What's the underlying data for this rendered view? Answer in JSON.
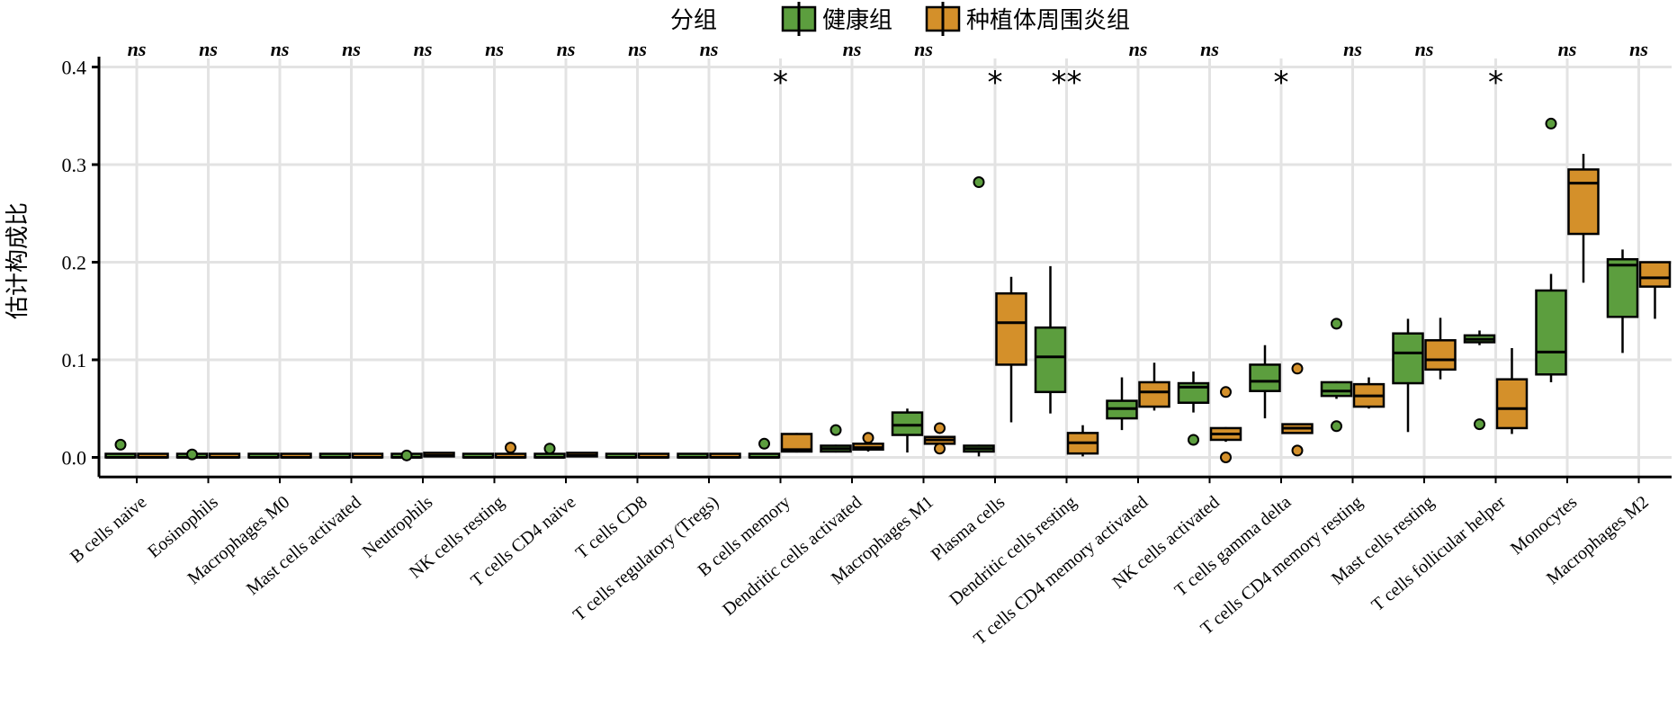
{
  "chart_data": {
    "type": "box",
    "ylabel": "估计构成比",
    "ylim": [
      -0.02,
      0.4
    ],
    "yticks": [
      "0.0",
      "0.1",
      "0.2",
      "0.3",
      "0.4"
    ],
    "ytick_values": [
      0.0,
      0.1,
      0.2,
      0.3,
      0.4
    ],
    "grid": true,
    "legend": {
      "title": "分组",
      "placement": "top-center",
      "entries": [
        "健康组",
        "种植体周围炎组"
      ]
    },
    "colors": {
      "健康组": "#5c9e3e",
      "种植体周围炎组": "#d4902a"
    },
    "categories": [
      "B cells naive",
      "Eosinophils",
      "Macrophages M0",
      "Mast cells activated",
      "Neutrophils",
      "NK cells resting",
      "T cells CD4 naive",
      "T cells CD8",
      "T cells regulatory (Tregs)",
      "B cells memory",
      "Dendritic cells activated",
      "Macrophages M1",
      "Plasma cells",
      "Dendritic cells resting",
      "T cells CD4 memory activated",
      "NK cells activated",
      "T cells gamma delta",
      "T cells CD4 memory resting",
      "Mast cells resting",
      "T cells follicular helper",
      "Monocytes",
      "Macrophages M2"
    ],
    "significance": [
      "ns",
      "ns",
      "ns",
      "ns",
      "ns",
      "ns",
      "ns",
      "ns",
      "ns",
      "*",
      "ns",
      "ns",
      "*",
      "**",
      "ns",
      "ns",
      "*",
      "ns",
      "ns",
      "*",
      "ns",
      "ns"
    ],
    "series": [
      {
        "name": "健康组",
        "boxes": [
          {
            "q1": 0,
            "median": 0,
            "q3": 0.001,
            "wmin": 0,
            "wmax": 0.001,
            "outliers": [
              0.013
            ]
          },
          {
            "q1": 0,
            "median": 0,
            "q3": 0.001,
            "wmin": 0,
            "wmax": 0.001,
            "outliers": [
              0.003
            ]
          },
          {
            "q1": 0,
            "median": 0,
            "q3": 0.001,
            "wmin": 0,
            "wmax": 0.001,
            "outliers": []
          },
          {
            "q1": 0,
            "median": 0,
            "q3": 0.001,
            "wmin": 0,
            "wmax": 0.001,
            "outliers": []
          },
          {
            "q1": 0,
            "median": 0,
            "q3": 0.001,
            "wmin": 0,
            "wmax": 0.001,
            "outliers": [
              0.002
            ]
          },
          {
            "q1": 0,
            "median": 0,
            "q3": 0.001,
            "wmin": 0,
            "wmax": 0.001,
            "outliers": []
          },
          {
            "q1": 0,
            "median": 0,
            "q3": 0.002,
            "wmin": 0,
            "wmax": 0.002,
            "outliers": [
              0.009
            ]
          },
          {
            "q1": 0,
            "median": 0,
            "q3": 0.001,
            "wmin": 0,
            "wmax": 0.001,
            "outliers": []
          },
          {
            "q1": 0,
            "median": 0,
            "q3": 0.001,
            "wmin": 0,
            "wmax": 0.001,
            "outliers": []
          },
          {
            "q1": 0,
            "median": 0,
            "q3": 0.001,
            "wmin": 0,
            "wmax": 0.001,
            "outliers": [
              0.014
            ]
          },
          {
            "q1": 0.006,
            "median": 0.009,
            "q3": 0.012,
            "wmin": 0.005,
            "wmax": 0.013,
            "outliers": [
              0.028
            ]
          },
          {
            "q1": 0.023,
            "median": 0.033,
            "q3": 0.046,
            "wmin": 0.005,
            "wmax": 0.05,
            "outliers": []
          },
          {
            "q1": 0.006,
            "median": 0.009,
            "q3": 0.012,
            "wmin": 0.001,
            "wmax": 0.013,
            "outliers": [
              0.282
            ]
          },
          {
            "q1": 0.067,
            "median": 0.103,
            "q3": 0.133,
            "wmin": 0.045,
            "wmax": 0.196,
            "outliers": []
          },
          {
            "q1": 0.04,
            "median": 0.05,
            "q3": 0.058,
            "wmin": 0.028,
            "wmax": 0.082,
            "outliers": []
          },
          {
            "q1": 0.056,
            "median": 0.072,
            "q3": 0.076,
            "wmin": 0.046,
            "wmax": 0.088,
            "outliers": [
              0.018
            ]
          },
          {
            "q1": 0.068,
            "median": 0.078,
            "q3": 0.095,
            "wmin": 0.04,
            "wmax": 0.115,
            "outliers": []
          },
          {
            "q1": 0.063,
            "median": 0.068,
            "q3": 0.077,
            "wmin": 0.06,
            "wmax": 0.078,
            "outliers": [
              0.137,
              0.032
            ]
          },
          {
            "q1": 0.076,
            "median": 0.107,
            "q3": 0.127,
            "wmin": 0.026,
            "wmax": 0.142,
            "outliers": []
          },
          {
            "q1": 0.118,
            "median": 0.121,
            "q3": 0.125,
            "wmin": 0.115,
            "wmax": 0.13,
            "outliers": [
              0.034
            ]
          },
          {
            "q1": 0.085,
            "median": 0.108,
            "q3": 0.171,
            "wmin": 0.077,
            "wmax": 0.188,
            "outliers": [
              0.342
            ]
          },
          {
            "q1": 0.144,
            "median": 0.197,
            "q3": 0.203,
            "wmin": 0.107,
            "wmax": 0.213,
            "outliers": []
          }
        ]
      },
      {
        "name": "种植体周围炎组",
        "boxes": [
          {
            "q1": 0,
            "median": 0,
            "q3": 0.001,
            "wmin": 0,
            "wmax": 0.001,
            "outliers": []
          },
          {
            "q1": 0,
            "median": 0,
            "q3": 0.001,
            "wmin": 0,
            "wmax": 0.001,
            "outliers": []
          },
          {
            "q1": 0,
            "median": 0,
            "q3": 0.001,
            "wmin": 0,
            "wmax": 0.001,
            "outliers": []
          },
          {
            "q1": 0,
            "median": 0,
            "q3": 0.001,
            "wmin": 0,
            "wmax": 0.001,
            "outliers": []
          },
          {
            "q1": 0.001,
            "median": 0.002,
            "q3": 0.004,
            "wmin": 0.001,
            "wmax": 0.004,
            "outliers": []
          },
          {
            "q1": 0,
            "median": 0,
            "q3": 0.001,
            "wmin": 0,
            "wmax": 0.001,
            "outliers": [
              0.01
            ]
          },
          {
            "q1": 0.001,
            "median": 0.002,
            "q3": 0.004,
            "wmin": 0.001,
            "wmax": 0.004,
            "outliers": []
          },
          {
            "q1": 0,
            "median": 0,
            "q3": 0.001,
            "wmin": 0,
            "wmax": 0.001,
            "outliers": []
          },
          {
            "q1": 0,
            "median": 0,
            "q3": 0.001,
            "wmin": 0,
            "wmax": 0.001,
            "outliers": []
          },
          {
            "q1": 0.006,
            "median": 0.008,
            "q3": 0.024,
            "wmin": 0.005,
            "wmax": 0.025,
            "outliers": []
          },
          {
            "q1": 0.008,
            "median": 0.01,
            "q3": 0.014,
            "wmin": 0.006,
            "wmax": 0.015,
            "outliers": [
              0.02
            ]
          },
          {
            "q1": 0.014,
            "median": 0.018,
            "q3": 0.021,
            "wmin": 0.012,
            "wmax": 0.022,
            "outliers": [
              0.03,
              0.009
            ]
          },
          {
            "q1": 0.095,
            "median": 0.138,
            "q3": 0.168,
            "wmin": 0.036,
            "wmax": 0.185,
            "outliers": []
          },
          {
            "q1": 0.004,
            "median": 0.015,
            "q3": 0.025,
            "wmin": 0.001,
            "wmax": 0.033,
            "outliers": []
          },
          {
            "q1": 0.052,
            "median": 0.067,
            "q3": 0.077,
            "wmin": 0.048,
            "wmax": 0.097,
            "outliers": []
          },
          {
            "q1": 0.018,
            "median": 0.024,
            "q3": 0.03,
            "wmin": 0.016,
            "wmax": 0.031,
            "outliers": [
              0.067,
              0.0
            ]
          },
          {
            "q1": 0.025,
            "median": 0.03,
            "q3": 0.034,
            "wmin": 0.024,
            "wmax": 0.035,
            "outliers": [
              0.091,
              0.007
            ]
          },
          {
            "q1": 0.052,
            "median": 0.063,
            "q3": 0.075,
            "wmin": 0.05,
            "wmax": 0.082,
            "outliers": []
          },
          {
            "q1": 0.09,
            "median": 0.1,
            "q3": 0.12,
            "wmin": 0.08,
            "wmax": 0.143,
            "outliers": []
          },
          {
            "q1": 0.03,
            "median": 0.05,
            "q3": 0.08,
            "wmin": 0.024,
            "wmax": 0.112,
            "outliers": []
          },
          {
            "q1": 0.229,
            "median": 0.281,
            "q3": 0.295,
            "wmin": 0.179,
            "wmax": 0.311,
            "outliers": []
          },
          {
            "q1": 0.175,
            "median": 0.184,
            "q3": 0.2,
            "wmin": 0.142,
            "wmax": 0.2,
            "outliers": []
          }
        ]
      }
    ]
  }
}
